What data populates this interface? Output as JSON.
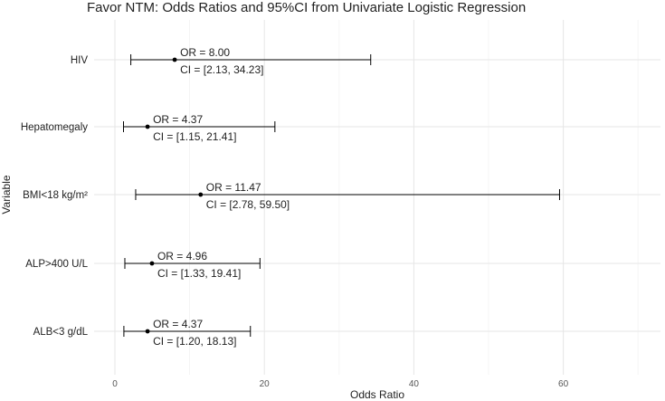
{
  "chart_data": {
    "type": "forest",
    "title": "Favor NTM: Odds Ratios and 95%CI from Univariate Logistic Regression",
    "xlabel": "Odds Ratio",
    "ylabel": "Variable",
    "xlim": [
      0,
      70
    ],
    "xticks": [
      0,
      20,
      40,
      60
    ],
    "grid": true,
    "colors": {
      "marks": "#000000",
      "grid": "#e6e6e6",
      "text": "#222222"
    },
    "rows": [
      {
        "variable": "HIV",
        "or": 8.0,
        "lower": 2.13,
        "upper": 34.23,
        "or_label": "OR = 8.00",
        "ci_label": "CI = [2.13, 34.23]"
      },
      {
        "variable": "Hepatomegaly",
        "or": 4.37,
        "lower": 1.15,
        "upper": 21.41,
        "or_label": "OR = 4.37",
        "ci_label": "CI = [1.15, 21.41]"
      },
      {
        "variable": "BMI<18 kg/m²",
        "or": 11.47,
        "lower": 2.78,
        "upper": 59.5,
        "or_label": "OR = 11.47",
        "ci_label": "CI = [2.78, 59.50]"
      },
      {
        "variable": "ALP>400 U/L",
        "or": 4.96,
        "lower": 1.33,
        "upper": 19.41,
        "or_label": "OR = 4.96",
        "ci_label": "CI = [1.33, 19.41]"
      },
      {
        "variable": "ALB<3 g/dL",
        "or": 4.37,
        "lower": 1.2,
        "upper": 18.13,
        "or_label": "OR = 4.37",
        "ci_label": "CI = [1.20, 18.13]"
      }
    ]
  }
}
